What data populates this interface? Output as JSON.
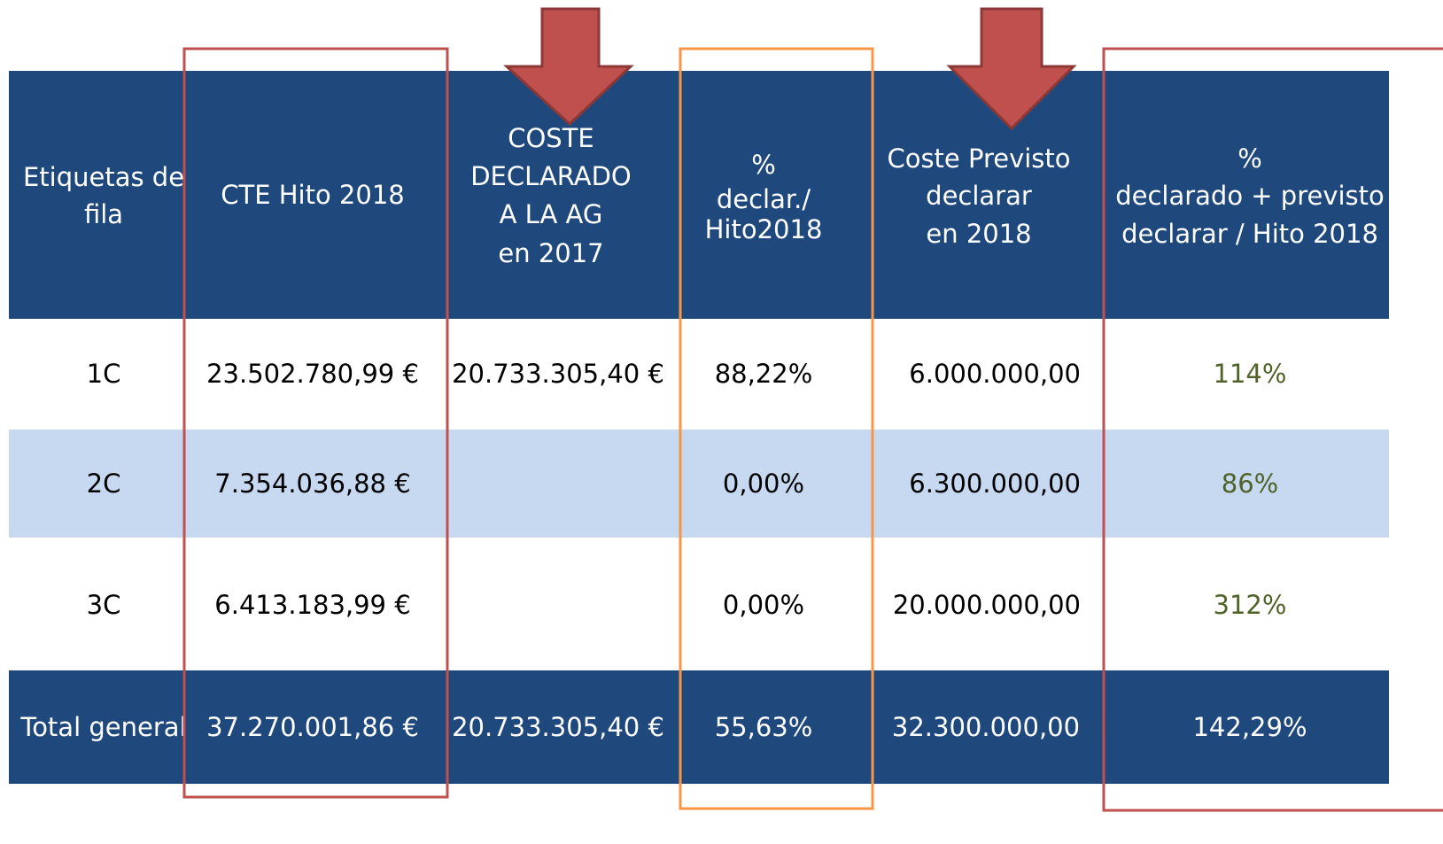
{
  "table": {
    "header": [
      [
        "Etiquetas de",
        "fila"
      ],
      [
        "CTE Hito 2018"
      ],
      [
        "COSTE",
        "DECLARADO",
        "A LA AG",
        "en 2017"
      ],
      [
        "%",
        "declar./",
        "Hito2018"
      ],
      [
        "Coste  Previsto",
        "declarar",
        "en 2018"
      ],
      [
        "%",
        "declarado + previsto",
        "declarar / Hito 2018"
      ]
    ],
    "rows": [
      [
        "1C",
        "23.502.780,99 €",
        "20.733.305,40 €",
        "88,22%",
        "6.000.000,00",
        "114%"
      ],
      [
        "2C",
        "7.354.036,88 €",
        null,
        "0,00%",
        "6.300.000,00",
        "86%"
      ],
      [
        "3C",
        "6.413.183,99 €",
        null,
        "0,00%",
        "20.000.000,00",
        "312%"
      ]
    ],
    "total": [
      "Total general",
      "37.270.001,86 €",
      "20.733.305,40 €",
      "55,63%",
      "32.300.000,00",
      "142,29%"
    ]
  }
}
